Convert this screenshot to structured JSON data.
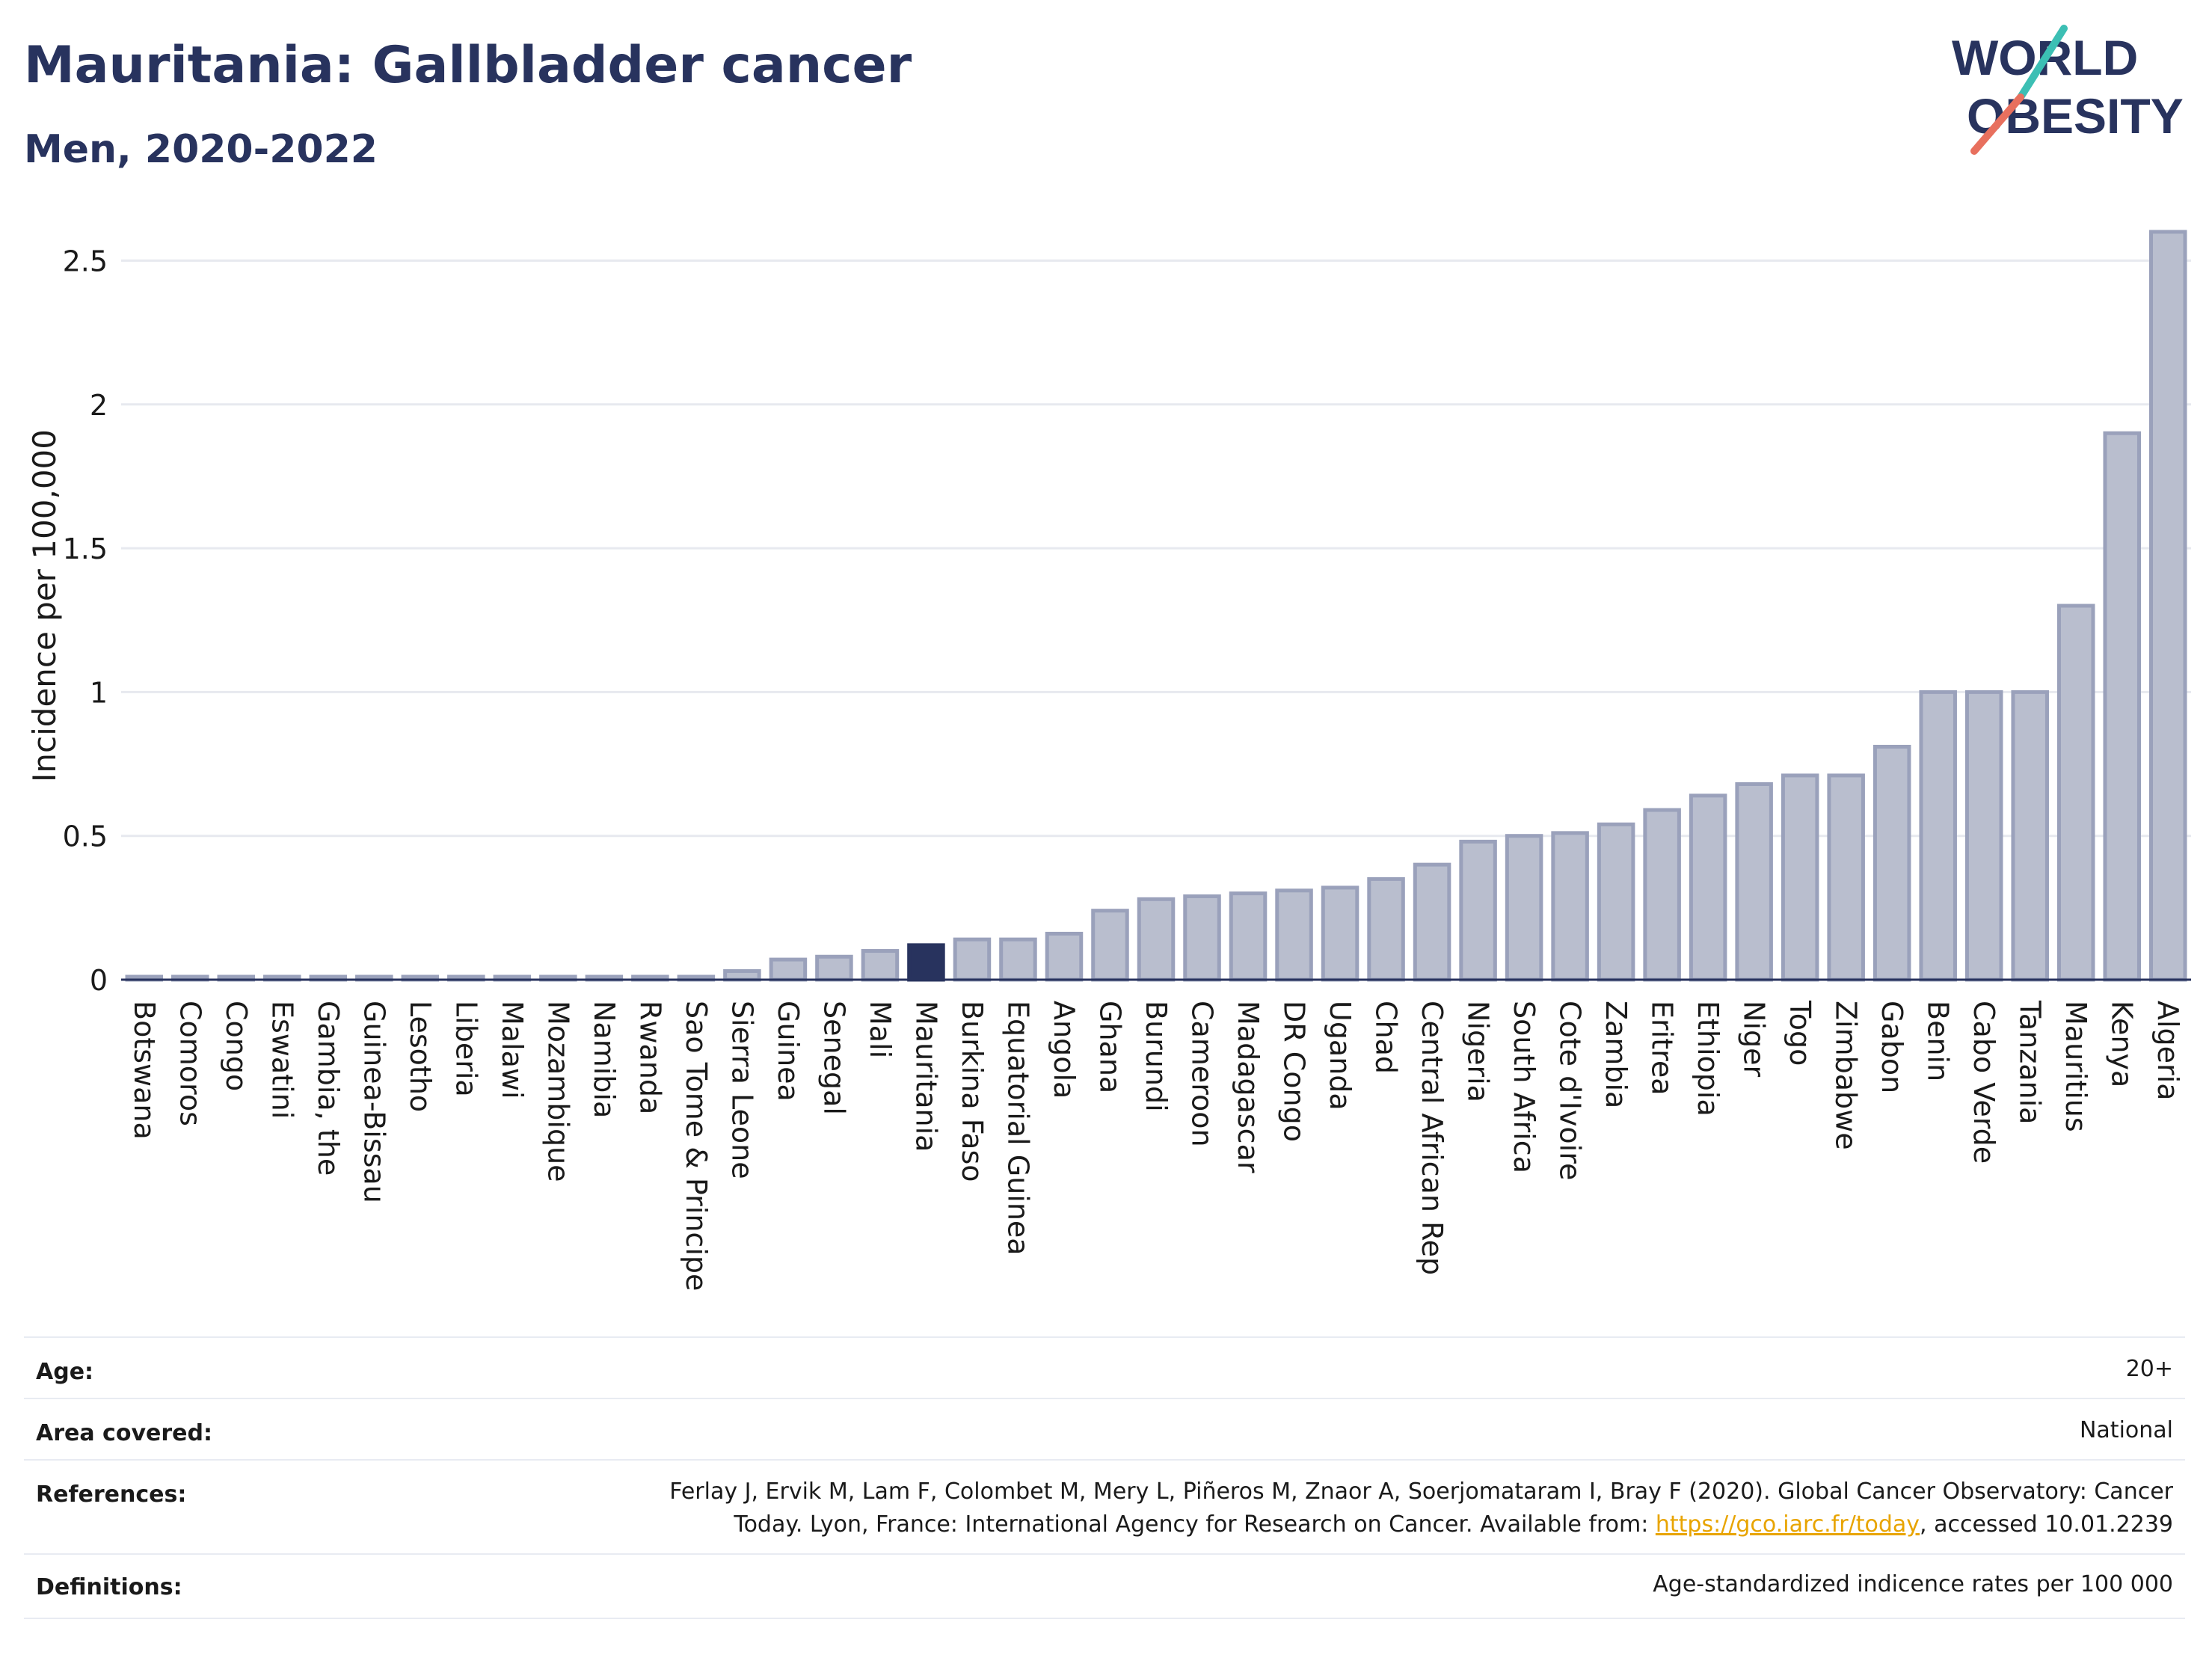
{
  "header": {
    "title": "Mauritania: Gallbladder cancer",
    "subtitle": "Men, 2020-2022"
  },
  "logo": {
    "line1": "WORLD",
    "line2": "OBESITY"
  },
  "chart_data": {
    "type": "bar",
    "title": "Mauritania: Gallbladder cancer",
    "subtitle": "Men, 2020-2022",
    "ylabel": "Incidence per 100,000",
    "xlabel": "",
    "ylim": [
      0,
      2.6
    ],
    "yticks": [
      0,
      0.5,
      1,
      1.5,
      2,
      2.5
    ],
    "ytick_labels": [
      "0",
      "0.5",
      "1",
      "1.5",
      "2",
      "2.5"
    ],
    "grid": true,
    "highlight": "Mauritania",
    "colors": {
      "bar": "#b9bece",
      "bar_edge": "#9aa1bb",
      "highlight": "#28335e"
    },
    "categories": [
      "Botswana",
      "Comoros",
      "Congo",
      "Eswatini",
      "Gambia, the",
      "Guinea-Bissau",
      "Lesotho",
      "Liberia",
      "Malawi",
      "Mozambique",
      "Namibia",
      "Rwanda",
      "Sao Tome & Principe",
      "Sierra Leone",
      "Guinea",
      "Senegal",
      "Mali",
      "Mauritania",
      "Burkina Faso",
      "Equatorial Guinea",
      "Angola",
      "Ghana",
      "Burundi",
      "Cameroon",
      "Madagascar",
      "DR Congo",
      "Uganda",
      "Chad",
      "Central African Rep",
      "Nigeria",
      "South Africa",
      "Cote d'Ivoire",
      "Zambia",
      "Eritrea",
      "Ethiopia",
      "Niger",
      "Togo",
      "Zimbabwe",
      "Gabon",
      "Benin",
      "Cabo Verde",
      "Tanzania",
      "Mauritius",
      "Kenya",
      "Algeria"
    ],
    "values": [
      0.01,
      0.01,
      0.01,
      0.01,
      0.01,
      0.01,
      0.01,
      0.01,
      0.01,
      0.01,
      0.01,
      0.01,
      0.01,
      0.03,
      0.07,
      0.08,
      0.1,
      0.12,
      0.14,
      0.14,
      0.16,
      0.24,
      0.28,
      0.29,
      0.3,
      0.31,
      0.32,
      0.35,
      0.4,
      0.48,
      0.5,
      0.51,
      0.54,
      0.59,
      0.64,
      0.68,
      0.71,
      0.71,
      0.81,
      1.0,
      1.0,
      1.0,
      1.3,
      1.9,
      2.6
    ]
  },
  "meta": {
    "age_label": "Age:",
    "age_value": "20+",
    "area_label": "Area covered:",
    "area_value": "National",
    "references_label": "References:",
    "references_line1": "Ferlay J, Ervik M, Lam F, Colombet M, Mery L, Piñeros M, Znaor A, Soerjomataram I, Bray F (2020). Global Cancer Observatory: Cancer",
    "references_line2_pre": "Today. Lyon, France: International Agency for Research on Cancer. Available from: ",
    "references_link": "https://gco.iarc.fr/today",
    "references_line2_post": ", accessed 10.01.2239",
    "definitions_label": "Definitions:",
    "definitions_value": "Age-standardized indicence rates per 100 000"
  }
}
